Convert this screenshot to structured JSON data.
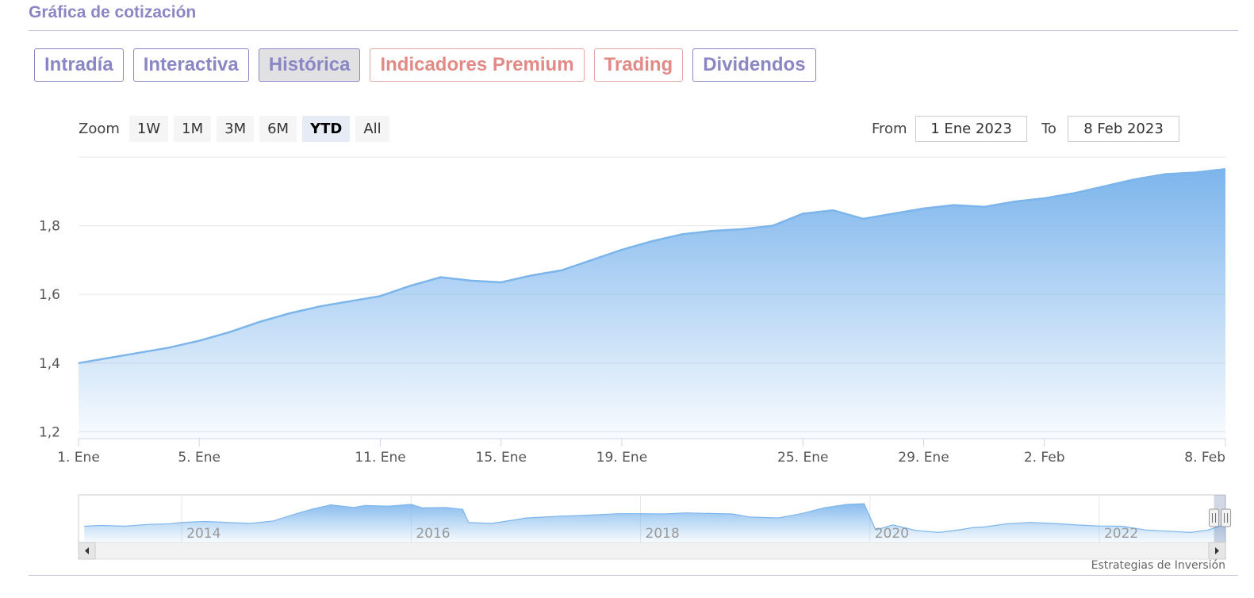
{
  "header": {
    "title": "Gráfica de cotización"
  },
  "tabs": [
    {
      "label": "Intradía",
      "style": "normal"
    },
    {
      "label": "Interactiva",
      "style": "normal"
    },
    {
      "label": "Histórica",
      "style": "active"
    },
    {
      "label": "Indicadores Premium",
      "style": "red"
    },
    {
      "label": "Trading",
      "style": "red"
    },
    {
      "label": "Dividendos",
      "style": "normal"
    }
  ],
  "zoom": {
    "label": "Zoom",
    "buttons": [
      "1W",
      "1M",
      "3M",
      "6M",
      "YTD",
      "All"
    ],
    "selected": "YTD"
  },
  "range": {
    "from_label": "From",
    "from_value": "1 Ene 2023",
    "to_label": "To",
    "to_value": "8 Feb 2023"
  },
  "credit": "Estrategias de Inversión",
  "colors": {
    "accent": "#8b86c4",
    "accent_red": "#e18a86",
    "series_line": "#7cb5ec",
    "navigator_line": "#7cb5ec"
  },
  "icons": {
    "scroll_left": "triangle-left-icon",
    "scroll_right": "triangle-right-icon",
    "handle": "navigator-handle-icon"
  },
  "chart_data": [
    {
      "type": "area",
      "title": "",
      "xlabel": "",
      "ylabel": "",
      "ylim": [
        1.18,
        2.0
      ],
      "xlim": [
        "2023-01-01",
        "2023-02-08"
      ],
      "y_ticks": [
        1.2,
        1.4,
        1.6,
        1.8
      ],
      "y_tick_labels": [
        "1,2",
        "1,4",
        "1,6",
        "1,8"
      ],
      "x_ticks": [
        "2023-01-01",
        "2023-01-05",
        "2023-01-11",
        "2023-01-15",
        "2023-01-19",
        "2023-01-25",
        "2023-01-29",
        "2023-02-02",
        "2023-02-08"
      ],
      "x_tick_labels": [
        "1. Ene",
        "5. Ene",
        "11. Ene",
        "15. Ene",
        "19. Ene",
        "25. Ene",
        "29. Ene",
        "2. Feb",
        "8. Feb"
      ],
      "grid": true,
      "series": [
        {
          "x": [
            "2023-01-01",
            "2023-01-02",
            "2023-01-03",
            "2023-01-04",
            "2023-01-05",
            "2023-01-06",
            "2023-01-07",
            "2023-01-08",
            "2023-01-09",
            "2023-01-10",
            "2023-01-11",
            "2023-01-12",
            "2023-01-13",
            "2023-01-14",
            "2023-01-15",
            "2023-01-16",
            "2023-01-17",
            "2023-01-18",
            "2023-01-19",
            "2023-01-20",
            "2023-01-21",
            "2023-01-22",
            "2023-01-23",
            "2023-01-24",
            "2023-01-25",
            "2023-01-26",
            "2023-01-27",
            "2023-01-28",
            "2023-01-29",
            "2023-01-30",
            "2023-01-31",
            "2023-02-01",
            "2023-02-02",
            "2023-02-03",
            "2023-02-04",
            "2023-02-05",
            "2023-02-06",
            "2023-02-07",
            "2023-02-08"
          ],
          "values": [
            1.4,
            1.415,
            1.43,
            1.445,
            1.465,
            1.49,
            1.52,
            1.545,
            1.565,
            1.58,
            1.595,
            1.625,
            1.65,
            1.64,
            1.635,
            1.655,
            1.67,
            1.7,
            1.73,
            1.755,
            1.775,
            1.785,
            1.79,
            1.8,
            1.835,
            1.845,
            1.82,
            1.835,
            1.85,
            1.86,
            1.855,
            1.87,
            1.88,
            1.895,
            1.915,
            1.935,
            1.95,
            1.955,
            1.965
          ]
        }
      ]
    },
    {
      "type": "area",
      "title": "",
      "x_ticks": [
        "2014",
        "2016",
        "2018",
        "2020",
        "2022"
      ],
      "x_tick_labels": [
        "2014",
        "2016",
        "2018",
        "2020",
        "2022"
      ],
      "xlim": [
        2013.1,
        2023.1
      ],
      "ylim": [
        0.9,
        2.8
      ],
      "selection": [
        "2023-01-01",
        "2023-02-08"
      ],
      "series": [
        {
          "x": [
            2013.15,
            2013.3,
            2013.5,
            2013.7,
            2013.9,
            2014.0,
            2014.2,
            2014.4,
            2014.6,
            2014.8,
            2015.0,
            2015.15,
            2015.3,
            2015.5,
            2015.6,
            2015.8,
            2016.0,
            2016.1,
            2016.3,
            2016.45,
            2016.5,
            2016.7,
            2016.9,
            2017.0,
            2017.3,
            2017.5,
            2017.8,
            2018.0,
            2018.2,
            2018.4,
            2018.6,
            2018.8,
            2018.95,
            2019.2,
            2019.4,
            2019.6,
            2019.8,
            2019.95,
            2020.05,
            2020.2,
            2020.4,
            2020.6,
            2020.8,
            2020.9,
            2021.0,
            2021.2,
            2021.4,
            2021.6,
            2021.8,
            2022.0,
            2022.2,
            2022.4,
            2022.6,
            2022.8,
            2022.95,
            2023.05,
            2023.1
          ],
          "values": [
            1.55,
            1.58,
            1.55,
            1.62,
            1.65,
            1.7,
            1.74,
            1.7,
            1.66,
            1.76,
            2.05,
            2.25,
            2.4,
            2.3,
            2.38,
            2.35,
            2.42,
            2.28,
            2.3,
            2.22,
            1.7,
            1.66,
            1.8,
            1.88,
            1.95,
            1.98,
            2.05,
            2.05,
            2.04,
            2.08,
            2.06,
            2.04,
            1.92,
            1.88,
            2.05,
            2.28,
            2.42,
            2.45,
            1.4,
            1.6,
            1.38,
            1.3,
            1.42,
            1.5,
            1.52,
            1.65,
            1.7,
            1.66,
            1.6,
            1.56,
            1.55,
            1.4,
            1.35,
            1.3,
            1.4,
            1.55,
            1.6
          ]
        }
      ]
    }
  ]
}
